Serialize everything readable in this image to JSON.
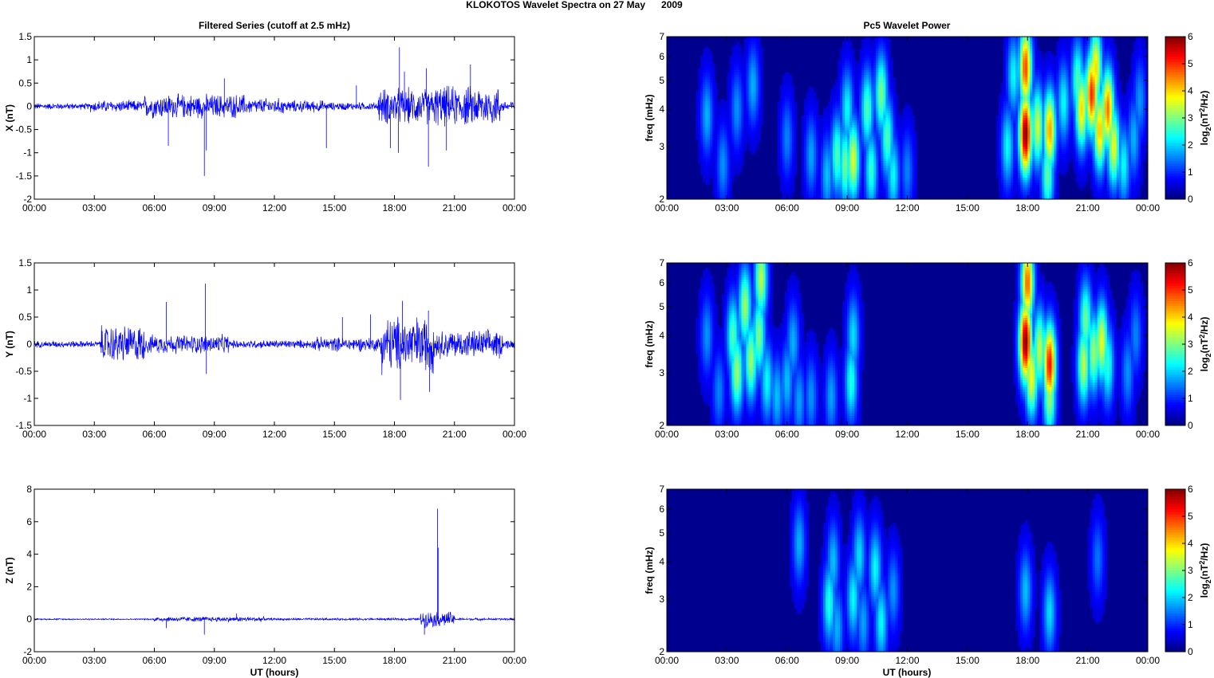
{
  "figure": {
    "title": "KLOKOTOS Wavelet Spectra on 27 May      2009",
    "left_title": "Filtered Series (cutoff at 2.5 mHz)",
    "right_title": "Pc5 Wavelet Power",
    "xlabel": "UT (hours)"
  },
  "chart_data": [
    {
      "type": "line",
      "component": "X",
      "ylabel": "X (nT)",
      "xlim": [
        0,
        24
      ],
      "ylim": [
        -2,
        1.5
      ],
      "yticks": [
        "1.5",
        "1",
        "0.5",
        "0",
        "-0.5",
        "-1",
        "-1.5",
        "-2"
      ],
      "xticks": [
        "00:00",
        "03:00",
        "06:00",
        "09:00",
        "12:00",
        "15:00",
        "18:00",
        "21:00",
        "00:00"
      ],
      "color": "#0000ff",
      "segments": [
        {
          "t": [
            0,
            2.8
          ],
          "amp": 0.08
        },
        {
          "t": [
            2.8,
            5.5
          ],
          "amp": 0.15
        },
        {
          "t": [
            5.5,
            10.5
          ],
          "amp": 0.3
        },
        {
          "t": [
            10.5,
            12.5
          ],
          "amp": 0.2
        },
        {
          "t": [
            12.5,
            14.5
          ],
          "amp": 0.15
        },
        {
          "t": [
            14.5,
            17.2
          ],
          "amp": 0.1
        },
        {
          "t": [
            17.2,
            20
          ],
          "amp": 0.45
        },
        {
          "t": [
            20,
            23.3
          ],
          "amp": 0.5
        },
        {
          "t": [
            23.3,
            24
          ],
          "amp": 0.15
        }
      ],
      "spikes": [
        {
          "t": 6.7,
          "v": -0.85
        },
        {
          "t": 8.5,
          "v": -1.5
        },
        {
          "t": 8.6,
          "v": -0.95
        },
        {
          "t": 9.5,
          "v": 0.6
        },
        {
          "t": 14.6,
          "v": -0.9
        },
        {
          "t": 16.1,
          "v": 0.45
        },
        {
          "t": 18.25,
          "v": 1.27
        },
        {
          "t": 18.2,
          "v": -1.0
        },
        {
          "t": 17.8,
          "v": -0.9
        },
        {
          "t": 19.6,
          "v": 0.82
        },
        {
          "t": 19.7,
          "v": -1.3
        },
        {
          "t": 20.6,
          "v": -0.95
        },
        {
          "t": 21.8,
          "v": 0.9
        },
        {
          "t": 18.5,
          "v": 0.75
        }
      ]
    },
    {
      "type": "line",
      "component": "Y",
      "ylabel": "Y (nT)",
      "xlim": [
        0,
        24
      ],
      "ylim": [
        -1.5,
        1.5
      ],
      "yticks": [
        "1.5",
        "1",
        "0.5",
        "0",
        "-0.5",
        "-1",
        "-1.5"
      ],
      "xticks": [
        "00:00",
        "03:00",
        "06:00",
        "09:00",
        "12:00",
        "15:00",
        "18:00",
        "21:00",
        "00:00"
      ],
      "color": "#0000ff",
      "segments": [
        {
          "t": [
            0,
            3.3
          ],
          "amp": 0.07
        },
        {
          "t": [
            3.3,
            5.5
          ],
          "amp": 0.4
        },
        {
          "t": [
            5.5,
            9.7
          ],
          "amp": 0.2
        },
        {
          "t": [
            9.7,
            14
          ],
          "amp": 0.09
        },
        {
          "t": [
            14,
            17.3
          ],
          "amp": 0.15
        },
        {
          "t": [
            17.3,
            20
          ],
          "amp": 0.6
        },
        {
          "t": [
            20,
            23.4
          ],
          "amp": 0.3
        },
        {
          "t": [
            23.4,
            24
          ],
          "amp": 0.1
        }
      ],
      "spikes": [
        {
          "t": 6.6,
          "v": 0.78
        },
        {
          "t": 8.55,
          "v": 1.12
        },
        {
          "t": 8.6,
          "v": -0.55
        },
        {
          "t": 18.3,
          "v": -1.03
        },
        {
          "t": 18.4,
          "v": 0.8
        },
        {
          "t": 19.7,
          "v": 0.62
        },
        {
          "t": 19.75,
          "v": -0.88
        },
        {
          "t": 15.4,
          "v": 0.5
        },
        {
          "t": 16.8,
          "v": 0.55
        }
      ]
    },
    {
      "type": "line",
      "component": "Z",
      "ylabel": "Z (nT)",
      "xlim": [
        0,
        24
      ],
      "ylim": [
        -2,
        8
      ],
      "yticks": [
        "8",
        "6",
        "4",
        "2",
        "0",
        "-2"
      ],
      "xticks": [
        "00:00",
        "03:00",
        "06:00",
        "09:00",
        "12:00",
        "15:00",
        "18:00",
        "21:00",
        "00:00"
      ],
      "color": "#0000ff",
      "segments": [
        {
          "t": [
            0,
            6
          ],
          "amp": 0.05
        },
        {
          "t": [
            6,
            11.5
          ],
          "amp": 0.18
        },
        {
          "t": [
            11.5,
            19.3
          ],
          "amp": 0.08
        },
        {
          "t": [
            19.3,
            21
          ],
          "amp": 0.55
        },
        {
          "t": [
            21,
            24
          ],
          "amp": 0.08
        }
      ],
      "spikes": [
        {
          "t": 20.15,
          "v": 6.8
        },
        {
          "t": 20.2,
          "v": 4.4
        },
        {
          "t": 19.5,
          "v": -0.95
        },
        {
          "t": 8.5,
          "v": -0.95
        },
        {
          "t": 6.6,
          "v": -0.55
        },
        {
          "t": 10.1,
          "v": 0.35
        }
      ]
    },
    {
      "type": "heatmap",
      "component": "X",
      "ylabel": "freq (mHz)",
      "yscale": "log",
      "ylim": [
        2,
        7
      ],
      "yticks": [
        7,
        6,
        5,
        4,
        3,
        2
      ],
      "xlim": [
        0,
        24
      ],
      "xticks": [
        "00:00",
        "03:00",
        "06:00",
        "09:00",
        "12:00",
        "15:00",
        "18:00",
        "21:00",
        "00:00"
      ],
      "colorbar": {
        "label": "log2(nT2/Hz)",
        "range": [
          0,
          6
        ],
        "ticks": [
          "6",
          "5",
          "4",
          "3",
          "2",
          "1",
          "0"
        ]
      },
      "blobs": [
        {
          "t": 2.0,
          "f": 3.8,
          "v": 1.5
        },
        {
          "t": 2.8,
          "f": 2.6,
          "v": 1.3
        },
        {
          "t": 3.5,
          "f": 4.0,
          "v": 1.3
        },
        {
          "t": 4.3,
          "f": 4.8,
          "v": 1.5
        },
        {
          "t": 6.0,
          "f": 3.2,
          "v": 1.2
        },
        {
          "t": 7.2,
          "f": 2.8,
          "v": 1.4
        },
        {
          "t": 8.0,
          "f": 2.4,
          "v": 1.6
        },
        {
          "t": 8.5,
          "f": 2.8,
          "v": 2.5
        },
        {
          "t": 8.9,
          "f": 2.6,
          "v": 2.7
        },
        {
          "t": 9.3,
          "f": 2.7,
          "v": 3.4
        },
        {
          "t": 9.0,
          "f": 4.0,
          "v": 2.0
        },
        {
          "t": 10.0,
          "f": 4.0,
          "v": 2.5
        },
        {
          "t": 10.2,
          "f": 2.5,
          "v": 2.3
        },
        {
          "t": 10.7,
          "f": 4.5,
          "v": 2.8
        },
        {
          "t": 11.0,
          "f": 3.2,
          "v": 2.5
        },
        {
          "t": 11.3,
          "f": 2.4,
          "v": 2.0
        },
        {
          "t": 12.0,
          "f": 2.5,
          "v": 1.2
        },
        {
          "t": 17.0,
          "f": 3.0,
          "v": 2.0
        },
        {
          "t": 17.3,
          "f": 5.2,
          "v": 2.0
        },
        {
          "t": 17.9,
          "f": 3.3,
          "v": 6.0
        },
        {
          "t": 17.9,
          "f": 5.5,
          "v": 4.8
        },
        {
          "t": 18.5,
          "f": 3.5,
          "v": 3.3
        },
        {
          "t": 19.1,
          "f": 3.4,
          "v": 4.2
        },
        {
          "t": 19.0,
          "f": 2.4,
          "v": 2.6
        },
        {
          "t": 19.8,
          "f": 4.2,
          "v": 2.0
        },
        {
          "t": 20.5,
          "f": 5.0,
          "v": 2.5
        },
        {
          "t": 20.7,
          "f": 4.0,
          "v": 3.8
        },
        {
          "t": 21.2,
          "f": 4.5,
          "v": 5.0
        },
        {
          "t": 21.4,
          "f": 5.5,
          "v": 3.8
        },
        {
          "t": 21.6,
          "f": 3.4,
          "v": 4.0
        },
        {
          "t": 22.0,
          "f": 4.0,
          "v": 4.5
        },
        {
          "t": 22.3,
          "f": 3.0,
          "v": 3.5
        },
        {
          "t": 22.8,
          "f": 2.6,
          "v": 2.0
        },
        {
          "t": 23.3,
          "f": 3.2,
          "v": 1.5
        },
        {
          "t": 23.6,
          "f": 4.3,
          "v": 1.3
        }
      ]
    },
    {
      "type": "heatmap",
      "component": "Y",
      "ylabel": "freq (mHz)",
      "yscale": "log",
      "ylim": [
        2,
        7
      ],
      "yticks": [
        7,
        6,
        5,
        4,
        3,
        2
      ],
      "xlim": [
        0,
        24
      ],
      "xticks": [
        "00:00",
        "03:00",
        "06:00",
        "09:00",
        "12:00",
        "15:00",
        "18:00",
        "21:00",
        "00:00"
      ],
      "colorbar": {
        "label": "log2(nT2/Hz)",
        "range": [
          0,
          6
        ],
        "ticks": [
          "6",
          "5",
          "4",
          "3",
          "2",
          "1",
          "0"
        ]
      },
      "blobs": [
        {
          "t": 2.0,
          "f": 4.0,
          "v": 1.3
        },
        {
          "t": 2.6,
          "f": 2.6,
          "v": 1.2
        },
        {
          "t": 3.3,
          "f": 4.0,
          "v": 2.5
        },
        {
          "t": 3.5,
          "f": 3.0,
          "v": 3.0
        },
        {
          "t": 3.9,
          "f": 5.0,
          "v": 3.0
        },
        {
          "t": 4.2,
          "f": 3.3,
          "v": 3.0
        },
        {
          "t": 4.6,
          "f": 4.0,
          "v": 2.8
        },
        {
          "t": 4.7,
          "f": 6.2,
          "v": 3.2
        },
        {
          "t": 5.0,
          "f": 2.8,
          "v": 2.0
        },
        {
          "t": 5.5,
          "f": 2.5,
          "v": 1.6
        },
        {
          "t": 6.0,
          "f": 2.8,
          "v": 1.6
        },
        {
          "t": 6.3,
          "f": 3.8,
          "v": 1.5
        },
        {
          "t": 6.6,
          "f": 2.4,
          "v": 1.4
        },
        {
          "t": 7.2,
          "f": 2.5,
          "v": 1.3
        },
        {
          "t": 8.2,
          "f": 2.5,
          "v": 1.4
        },
        {
          "t": 9.2,
          "f": 2.8,
          "v": 2.2
        },
        {
          "t": 9.3,
          "f": 4.0,
          "v": 1.8
        },
        {
          "t": 17.9,
          "f": 3.8,
          "v": 6.0
        },
        {
          "t": 18.0,
          "f": 6.0,
          "v": 4.6
        },
        {
          "t": 18.2,
          "f": 2.9,
          "v": 3.6
        },
        {
          "t": 18.6,
          "f": 3.6,
          "v": 3.2
        },
        {
          "t": 19.1,
          "f": 3.2,
          "v": 5.2
        },
        {
          "t": 19.1,
          "f": 2.5,
          "v": 3.0
        },
        {
          "t": 20.8,
          "f": 3.2,
          "v": 3.2
        },
        {
          "t": 20.9,
          "f": 4.5,
          "v": 2.7
        },
        {
          "t": 21.3,
          "f": 3.5,
          "v": 3.0
        },
        {
          "t": 21.7,
          "f": 3.8,
          "v": 3.5
        },
        {
          "t": 22.0,
          "f": 3.2,
          "v": 2.3
        },
        {
          "t": 23.0,
          "f": 3.0,
          "v": 1.3
        },
        {
          "t": 23.4,
          "f": 4.0,
          "v": 1.2
        }
      ]
    },
    {
      "type": "heatmap",
      "component": "Z",
      "ylabel": "freq (mHz)",
      "yscale": "log",
      "ylim": [
        2,
        7
      ],
      "yticks": [
        7,
        6,
        5,
        4,
        3,
        2
      ],
      "xlim": [
        0,
        24
      ],
      "xticks": [
        "00:00",
        "03:00",
        "06:00",
        "09:00",
        "12:00",
        "15:00",
        "18:00",
        "21:00",
        "00:00"
      ],
      "colorbar": {
        "label": "log2(nT2/Hz)",
        "range": [
          0,
          6
        ],
        "ticks": [
          "6",
          "5",
          "4",
          "3",
          "2",
          "1",
          "0"
        ]
      },
      "blobs": [
        {
          "t": 6.6,
          "f": 4.6,
          "v": 1.5
        },
        {
          "t": 8.1,
          "f": 2.9,
          "v": 2.2
        },
        {
          "t": 8.3,
          "f": 4.0,
          "v": 1.6
        },
        {
          "t": 8.5,
          "f": 2.4,
          "v": 1.5
        },
        {
          "t": 9.3,
          "f": 3.0,
          "v": 2.0
        },
        {
          "t": 9.6,
          "f": 4.2,
          "v": 1.8
        },
        {
          "t": 9.8,
          "f": 2.5,
          "v": 1.4
        },
        {
          "t": 10.4,
          "f": 3.8,
          "v": 2.0
        },
        {
          "t": 10.7,
          "f": 2.5,
          "v": 2.0
        },
        {
          "t": 11.3,
          "f": 3.2,
          "v": 1.3
        },
        {
          "t": 17.9,
          "f": 3.2,
          "v": 1.6
        },
        {
          "t": 19.1,
          "f": 2.7,
          "v": 1.8
        },
        {
          "t": 21.5,
          "f": 4.1,
          "v": 1.1
        }
      ]
    }
  ]
}
